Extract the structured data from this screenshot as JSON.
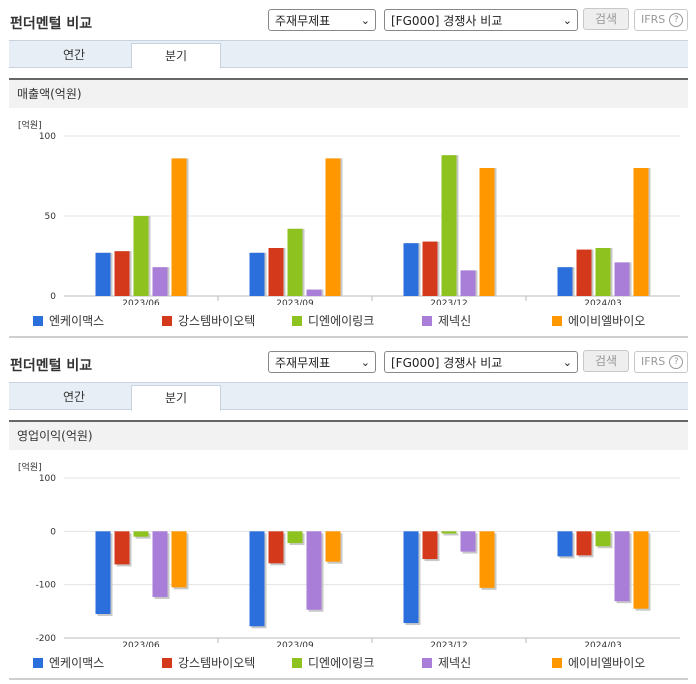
{
  "colors": {
    "series": [
      "#2a6fdc",
      "#d4391b",
      "#8ec21f",
      "#a97ed9",
      "#ff9800"
    ]
  },
  "sections": [
    {
      "title": "펀더멘털 비교",
      "select1": "주재무제표",
      "select2": "[FG000] 경쟁사 비교",
      "search_label": "검색",
      "ifrs_label": "IFRS",
      "help_label": "?",
      "tabs": [
        "연간",
        "분기"
      ],
      "active_tab": 1,
      "panel_title": "매출액(억원)",
      "unit": "[억원]",
      "legend": [
        "엔케이맥스",
        "강스템바이오텍",
        "디엔에이링크",
        "제넥신",
        "에이비엘바이오"
      ]
    },
    {
      "title": "펀더멘털 비교",
      "select1": "주재무제표",
      "select2": "[FG000] 경쟁사 비교",
      "search_label": "검색",
      "ifrs_label": "IFRS",
      "help_label": "?",
      "tabs": [
        "연간",
        "분기"
      ],
      "active_tab": 1,
      "panel_title": "영업이익(억원)",
      "unit": "[억원]",
      "legend": [
        "엔케이맥스",
        "강스템바이오텍",
        "디엔에이링크",
        "제넥신",
        "에이비엘바이오"
      ]
    }
  ],
  "chart_data": [
    {
      "type": "bar",
      "title": "매출액(억원)",
      "ylabel": "[억원]",
      "categories": [
        "2023/06",
        "2023/09",
        "2023/12",
        "2024/03"
      ],
      "ylim": [
        0,
        100
      ],
      "yticks": [
        0,
        50,
        100
      ],
      "grid": true,
      "legend_position": "bottom",
      "series": [
        {
          "name": "엔케이맥스",
          "values": [
            27,
            27,
            33,
            18
          ]
        },
        {
          "name": "강스템바이오텍",
          "values": [
            28,
            30,
            34,
            29
          ]
        },
        {
          "name": "디엔에이링크",
          "values": [
            50,
            42,
            88,
            30
          ]
        },
        {
          "name": "제넥신",
          "values": [
            18,
            4,
            16,
            21
          ]
        },
        {
          "name": "에이비엘바이오",
          "values": [
            86,
            86,
            80,
            80
          ]
        }
      ]
    },
    {
      "type": "bar",
      "title": "영업이익(억원)",
      "ylabel": "[억원]",
      "categories": [
        "2023/06",
        "2023/09",
        "2023/12",
        "2024/03"
      ],
      "ylim": [
        -200,
        100
      ],
      "yticks": [
        -200,
        -100,
        0,
        100
      ],
      "grid": true,
      "legend_position": "bottom",
      "series": [
        {
          "name": "엔케이맥스",
          "values": [
            -155,
            -178,
            -172,
            -47
          ]
        },
        {
          "name": "강스템바이오텍",
          "values": [
            -62,
            -60,
            -52,
            -45
          ]
        },
        {
          "name": "디엔에이링크",
          "values": [
            -10,
            -22,
            -4,
            -28
          ]
        },
        {
          "name": "제넥신",
          "values": [
            -123,
            -147,
            -38,
            -131
          ]
        },
        {
          "name": "에이비엘바이오",
          "values": [
            -105,
            -57,
            -106,
            -145
          ]
        }
      ]
    }
  ]
}
